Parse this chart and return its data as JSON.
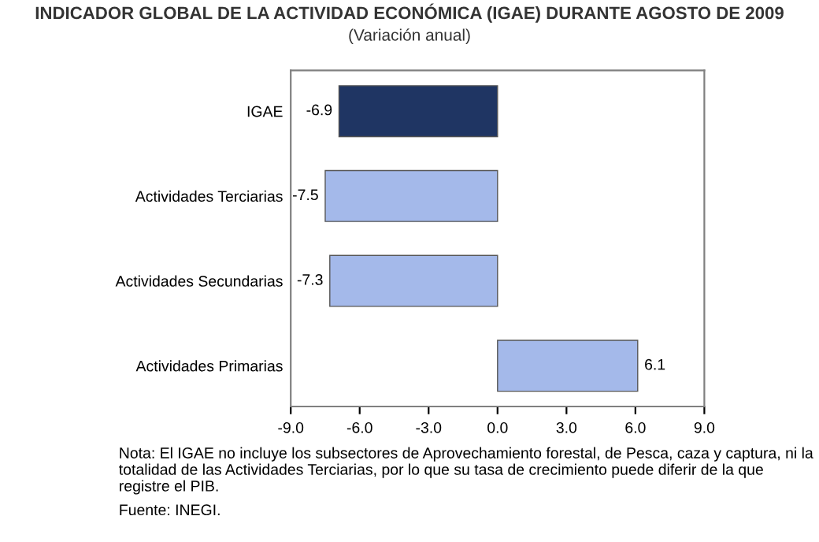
{
  "chart_data": {
    "type": "bar",
    "orientation": "horizontal",
    "title": "INDICADOR GLOBAL DE LA ACTIVIDAD ECONÓMICA (IGAE) DURANTE AGOSTO DE 2009",
    "subtitle": "(Variación anual)",
    "categories": [
      "IGAE",
      "Actividades Terciarias",
      "Actividades Secundarias",
      "Actividades Primarias"
    ],
    "values": [
      -6.9,
      -7.5,
      -7.3,
      6.1
    ],
    "value_labels": [
      "-6.9",
      "-7.5",
      "-7.3",
      "6.1"
    ],
    "colors": [
      "#1f3563",
      "#a4b9ea",
      "#a4b9ea",
      "#a4b9ea"
    ],
    "xlim": [
      -9,
      9
    ],
    "xticks": [
      {
        "value": -9,
        "label": "-9.0"
      },
      {
        "value": -6,
        "label": "-6.0"
      },
      {
        "value": -3,
        "label": "-3.0"
      },
      {
        "value": 0,
        "label": "0.0"
      },
      {
        "value": 3,
        "label": "3.0"
      },
      {
        "value": 6,
        "label": "6.0"
      },
      {
        "value": 9,
        "label": "9.0"
      }
    ],
    "grid": false,
    "annotations": [
      "Nota: El IGAE no incluye los subsectores de Aprovechamiento forestal, de Pesca, caza y captura, ni la totalidad de las Actividades Terciarias, por lo que su tasa de crecimiento puede diferir de la que registre el PIB.",
      "Fuente: INEGI."
    ]
  }
}
